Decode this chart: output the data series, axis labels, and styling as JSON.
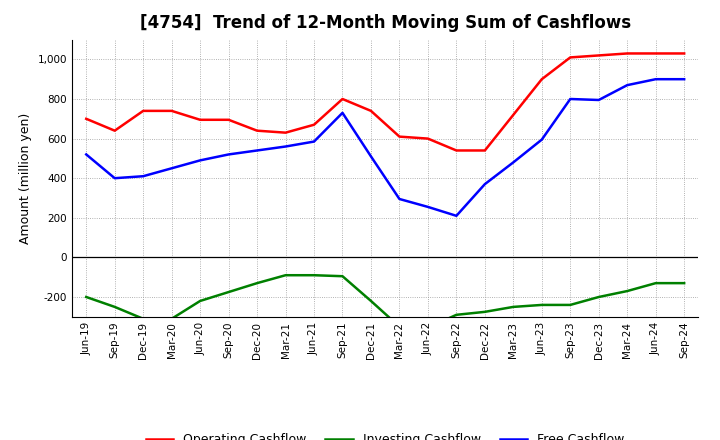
{
  "title": "[4754]  Trend of 12-Month Moving Sum of Cashflows",
  "ylabel": "Amount (million yen)",
  "x_labels": [
    "Jun-19",
    "Sep-19",
    "Dec-19",
    "Mar-20",
    "Jun-20",
    "Sep-20",
    "Dec-20",
    "Mar-21",
    "Jun-21",
    "Sep-21",
    "Dec-21",
    "Mar-22",
    "Jun-22",
    "Sep-22",
    "Dec-22",
    "Mar-23",
    "Jun-23",
    "Sep-23",
    "Dec-23",
    "Mar-24",
    "Jun-24",
    "Sep-24"
  ],
  "operating": [
    700,
    640,
    740,
    740,
    695,
    695,
    640,
    630,
    670,
    800,
    740,
    610,
    600,
    540,
    540,
    720,
    900,
    1010,
    1020,
    1030,
    1030,
    1030
  ],
  "investing": [
    -200,
    -250,
    -310,
    -310,
    -220,
    -175,
    -130,
    -90,
    -90,
    -95,
    -220,
    -350,
    -355,
    -290,
    -275,
    -250,
    -240,
    -240,
    -200,
    -170,
    -130,
    -130
  ],
  "free": [
    520,
    400,
    410,
    450,
    490,
    520,
    540,
    560,
    585,
    730,
    510,
    295,
    255,
    210,
    370,
    480,
    595,
    800,
    795,
    870,
    900,
    900
  ],
  "ylim": [
    -300,
    1100
  ],
  "yticks": [
    -200,
    0,
    200,
    400,
    600,
    800,
    1000
  ],
  "operating_color": "#FF0000",
  "investing_color": "#008000",
  "free_color": "#0000FF",
  "bg_color": "#FFFFFF",
  "plot_bg_color": "#FFFFFF",
  "grid_color": "#999999",
  "title_fontsize": 12,
  "axis_label_fontsize": 9,
  "tick_fontsize": 7.5,
  "legend_fontsize": 9,
  "linewidth": 1.8
}
